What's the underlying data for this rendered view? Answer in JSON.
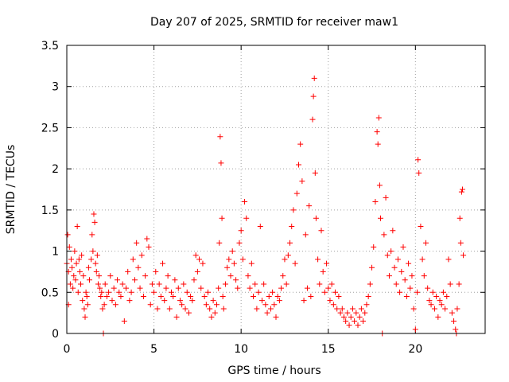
{
  "chart_data": {
    "type": "scatter",
    "title": "Day 207 of 2025, SRMTID for receiver maw1",
    "xlabel": "GPS time / hours",
    "ylabel": "SRMTID / TECUs",
    "xlim": [
      0,
      24
    ],
    "ylim": [
      0,
      3.5
    ],
    "xticks": [
      0,
      5,
      10,
      15,
      20
    ],
    "yticks": [
      0,
      0.5,
      1,
      1.5,
      2,
      2.5,
      3,
      3.5
    ],
    "xtick_labels": [
      "0",
      "5",
      "10",
      "15",
      "20"
    ],
    "ytick_labels": [
      "0",
      "0.5",
      "1",
      "1.5",
      "2",
      "2.5",
      "3",
      "3.5"
    ],
    "grid": true,
    "marker": "+",
    "series": [
      {
        "name": "maw1",
        "color": "#ff0000",
        "points": [
          [
            0.0,
            0.85
          ],
          [
            0.05,
            1.2
          ],
          [
            0.1,
            0.75
          ],
          [
            0.1,
            0.35
          ],
          [
            0.15,
            1.05
          ],
          [
            0.2,
            0.6
          ],
          [
            0.25,
            0.9
          ],
          [
            0.3,
            0.8
          ],
          [
            0.35,
            0.55
          ],
          [
            0.4,
            0.7
          ],
          [
            0.45,
            1.0
          ],
          [
            0.5,
            0.65
          ],
          [
            0.55,
            0.85
          ],
          [
            0.6,
            1.3
          ],
          [
            0.65,
            0.5
          ],
          [
            0.7,
            0.9
          ],
          [
            0.75,
            0.75
          ],
          [
            0.8,
            0.6
          ],
          [
            0.85,
            0.95
          ],
          [
            0.9,
            0.4
          ],
          [
            0.95,
            0.7
          ],
          [
            1.0,
            0.3
          ],
          [
            1.05,
            0.2
          ],
          [
            1.1,
            0.5
          ],
          [
            1.15,
            0.45
          ],
          [
            1.2,
            0.35
          ],
          [
            1.25,
            0.8
          ],
          [
            1.3,
            0.65
          ],
          [
            1.4,
            0.9
          ],
          [
            1.45,
            1.2
          ],
          [
            1.5,
            1.0
          ],
          [
            1.55,
            1.45
          ],
          [
            1.6,
            1.35
          ],
          [
            1.65,
            0.85
          ],
          [
            1.7,
            0.75
          ],
          [
            1.75,
            0.95
          ],
          [
            1.8,
            0.6
          ],
          [
            1.85,
            0.7
          ],
          [
            1.9,
            0.55
          ],
          [
            1.95,
            0.45
          ],
          [
            2.0,
            0.5
          ],
          [
            2.05,
            0.3
          ],
          [
            2.1,
            0.0
          ],
          [
            2.15,
            0.35
          ],
          [
            2.2,
            0.6
          ],
          [
            2.3,
            0.45
          ],
          [
            2.4,
            0.5
          ],
          [
            2.5,
            0.7
          ],
          [
            2.6,
            0.4
          ],
          [
            2.7,
            0.55
          ],
          [
            2.8,
            0.35
          ],
          [
            2.9,
            0.65
          ],
          [
            3.0,
            0.5
          ],
          [
            3.1,
            0.45
          ],
          [
            3.2,
            0.6
          ],
          [
            3.3,
            0.15
          ],
          [
            3.4,
            0.55
          ],
          [
            3.5,
            0.75
          ],
          [
            3.6,
            0.4
          ],
          [
            3.7,
            0.5
          ],
          [
            3.8,
            0.9
          ],
          [
            3.9,
            0.65
          ],
          [
            4.0,
            1.1
          ],
          [
            4.1,
            0.8
          ],
          [
            4.2,
            0.55
          ],
          [
            4.3,
            0.95
          ],
          [
            4.4,
            0.45
          ],
          [
            4.5,
            0.7
          ],
          [
            4.6,
            1.15
          ],
          [
            4.7,
            1.05
          ],
          [
            4.8,
            0.35
          ],
          [
            4.9,
            0.6
          ],
          [
            5.0,
            0.5
          ],
          [
            5.1,
            0.75
          ],
          [
            5.2,
            0.3
          ],
          [
            5.3,
            0.6
          ],
          [
            5.4,
            0.45
          ],
          [
            5.5,
            0.85
          ],
          [
            5.6,
            0.4
          ],
          [
            5.7,
            0.55
          ],
          [
            5.8,
            0.7
          ],
          [
            5.9,
            0.3
          ],
          [
            6.0,
            0.5
          ],
          [
            6.1,
            0.45
          ],
          [
            6.2,
            0.65
          ],
          [
            6.3,
            0.2
          ],
          [
            6.4,
            0.55
          ],
          [
            6.5,
            0.4
          ],
          [
            6.6,
            0.35
          ],
          [
            6.7,
            0.6
          ],
          [
            6.8,
            0.3
          ],
          [
            6.9,
            0.5
          ],
          [
            7.0,
            0.25
          ],
          [
            7.1,
            0.45
          ],
          [
            7.2,
            0.4
          ],
          [
            7.3,
            0.65
          ],
          [
            7.4,
            0.95
          ],
          [
            7.5,
            0.75
          ],
          [
            7.6,
            0.9
          ],
          [
            7.7,
            0.55
          ],
          [
            7.8,
            0.85
          ],
          [
            7.9,
            0.45
          ],
          [
            8.0,
            0.35
          ],
          [
            8.1,
            0.5
          ],
          [
            8.2,
            0.3
          ],
          [
            8.3,
            0.2
          ],
          [
            8.4,
            0.4
          ],
          [
            8.5,
            0.25
          ],
          [
            8.6,
            0.35
          ],
          [
            8.7,
            0.55
          ],
          [
            8.75,
            1.1
          ],
          [
            8.8,
            2.39
          ],
          [
            8.85,
            2.07
          ],
          [
            8.9,
            1.4
          ],
          [
            8.95,
            0.45
          ],
          [
            9.0,
            0.3
          ],
          [
            9.1,
            0.6
          ],
          [
            9.2,
            0.8
          ],
          [
            9.3,
            0.9
          ],
          [
            9.4,
            0.7
          ],
          [
            9.5,
            1.0
          ],
          [
            9.6,
            0.85
          ],
          [
            9.7,
            0.65
          ],
          [
            9.8,
            0.55
          ],
          [
            9.9,
            1.1
          ],
          [
            10.0,
            1.25
          ],
          [
            10.1,
            0.9
          ],
          [
            10.2,
            1.6
          ],
          [
            10.3,
            1.4
          ],
          [
            10.4,
            0.7
          ],
          [
            10.5,
            0.55
          ],
          [
            10.6,
            0.85
          ],
          [
            10.7,
            0.45
          ],
          [
            10.8,
            0.6
          ],
          [
            10.9,
            0.3
          ],
          [
            11.0,
            0.5
          ],
          [
            11.1,
            1.3
          ],
          [
            11.2,
            0.4
          ],
          [
            11.3,
            0.6
          ],
          [
            11.4,
            0.35
          ],
          [
            11.5,
            0.25
          ],
          [
            11.6,
            0.45
          ],
          [
            11.7,
            0.3
          ],
          [
            11.8,
            0.5
          ],
          [
            11.9,
            0.35
          ],
          [
            12.0,
            0.2
          ],
          [
            12.1,
            0.45
          ],
          [
            12.2,
            0.4
          ],
          [
            12.3,
            0.55
          ],
          [
            12.4,
            0.7
          ],
          [
            12.5,
            0.9
          ],
          [
            12.6,
            0.6
          ],
          [
            12.7,
            0.95
          ],
          [
            12.8,
            1.1
          ],
          [
            12.9,
            1.3
          ],
          [
            13.0,
            1.5
          ],
          [
            13.1,
            0.85
          ],
          [
            13.2,
            1.7
          ],
          [
            13.3,
            2.05
          ],
          [
            13.4,
            2.3
          ],
          [
            13.5,
            1.85
          ],
          [
            13.6,
            0.4
          ],
          [
            13.7,
            1.2
          ],
          [
            13.8,
            0.55
          ],
          [
            13.9,
            1.55
          ],
          [
            14.0,
            0.45
          ],
          [
            14.1,
            2.6
          ],
          [
            14.15,
            2.88
          ],
          [
            14.2,
            3.1
          ],
          [
            14.25,
            1.95
          ],
          [
            14.3,
            1.4
          ],
          [
            14.4,
            0.9
          ],
          [
            14.5,
            0.6
          ],
          [
            14.6,
            1.25
          ],
          [
            14.7,
            0.75
          ],
          [
            14.8,
            0.5
          ],
          [
            14.9,
            0.85
          ],
          [
            15.0,
            0.55
          ],
          [
            15.1,
            0.4
          ],
          [
            15.2,
            0.6
          ],
          [
            15.3,
            0.35
          ],
          [
            15.4,
            0.5
          ],
          [
            15.5,
            0.3
          ],
          [
            15.6,
            0.45
          ],
          [
            15.7,
            0.25
          ],
          [
            15.8,
            0.3
          ],
          [
            15.9,
            0.2
          ],
          [
            16.0,
            0.15
          ],
          [
            16.1,
            0.25
          ],
          [
            16.2,
            0.1
          ],
          [
            16.3,
            0.2
          ],
          [
            16.4,
            0.3
          ],
          [
            16.5,
            0.15
          ],
          [
            16.6,
            0.25
          ],
          [
            16.7,
            0.1
          ],
          [
            16.8,
            0.2
          ],
          [
            16.9,
            0.3
          ],
          [
            17.0,
            0.15
          ],
          [
            17.1,
            0.25
          ],
          [
            17.2,
            0.35
          ],
          [
            17.3,
            0.45
          ],
          [
            17.4,
            0.6
          ],
          [
            17.5,
            0.8
          ],
          [
            17.6,
            1.05
          ],
          [
            17.7,
            1.6
          ],
          [
            17.8,
            2.45
          ],
          [
            17.85,
            2.3
          ],
          [
            17.9,
            2.62
          ],
          [
            17.95,
            1.8
          ],
          [
            18.0,
            1.4
          ],
          [
            18.1,
            0.0
          ],
          [
            18.2,
            1.2
          ],
          [
            18.3,
            1.65
          ],
          [
            18.4,
            0.95
          ],
          [
            18.5,
            0.7
          ],
          [
            18.6,
            1.0
          ],
          [
            18.7,
            1.25
          ],
          [
            18.8,
            0.8
          ],
          [
            18.9,
            0.6
          ],
          [
            19.0,
            0.9
          ],
          [
            19.1,
            0.5
          ],
          [
            19.2,
            0.75
          ],
          [
            19.3,
            1.05
          ],
          [
            19.4,
            0.65
          ],
          [
            19.5,
            0.45
          ],
          [
            19.6,
            0.85
          ],
          [
            19.7,
            0.55
          ],
          [
            19.8,
            0.7
          ],
          [
            19.9,
            0.3
          ],
          [
            20.0,
            0.05
          ],
          [
            20.1,
            0.5
          ],
          [
            20.15,
            2.11
          ],
          [
            20.2,
            1.95
          ],
          [
            20.3,
            1.3
          ],
          [
            20.4,
            0.9
          ],
          [
            20.5,
            0.7
          ],
          [
            20.6,
            1.1
          ],
          [
            20.7,
            0.55
          ],
          [
            20.8,
            0.4
          ],
          [
            20.9,
            0.35
          ],
          [
            21.0,
            0.5
          ],
          [
            21.1,
            0.3
          ],
          [
            21.2,
            0.45
          ],
          [
            21.3,
            0.2
          ],
          [
            21.4,
            0.4
          ],
          [
            21.5,
            0.35
          ],
          [
            21.6,
            0.5
          ],
          [
            21.7,
            0.3
          ],
          [
            21.8,
            0.45
          ],
          [
            21.9,
            0.9
          ],
          [
            22.0,
            0.6
          ],
          [
            22.1,
            0.25
          ],
          [
            22.2,
            0.15
          ],
          [
            22.3,
            0.05
          ],
          [
            22.35,
            0.0
          ],
          [
            22.4,
            0.3
          ],
          [
            22.5,
            0.6
          ],
          [
            22.55,
            1.4
          ],
          [
            22.6,
            1.1
          ],
          [
            22.65,
            1.72
          ],
          [
            22.7,
            1.75
          ],
          [
            22.75,
            0.95
          ]
        ]
      }
    ]
  }
}
